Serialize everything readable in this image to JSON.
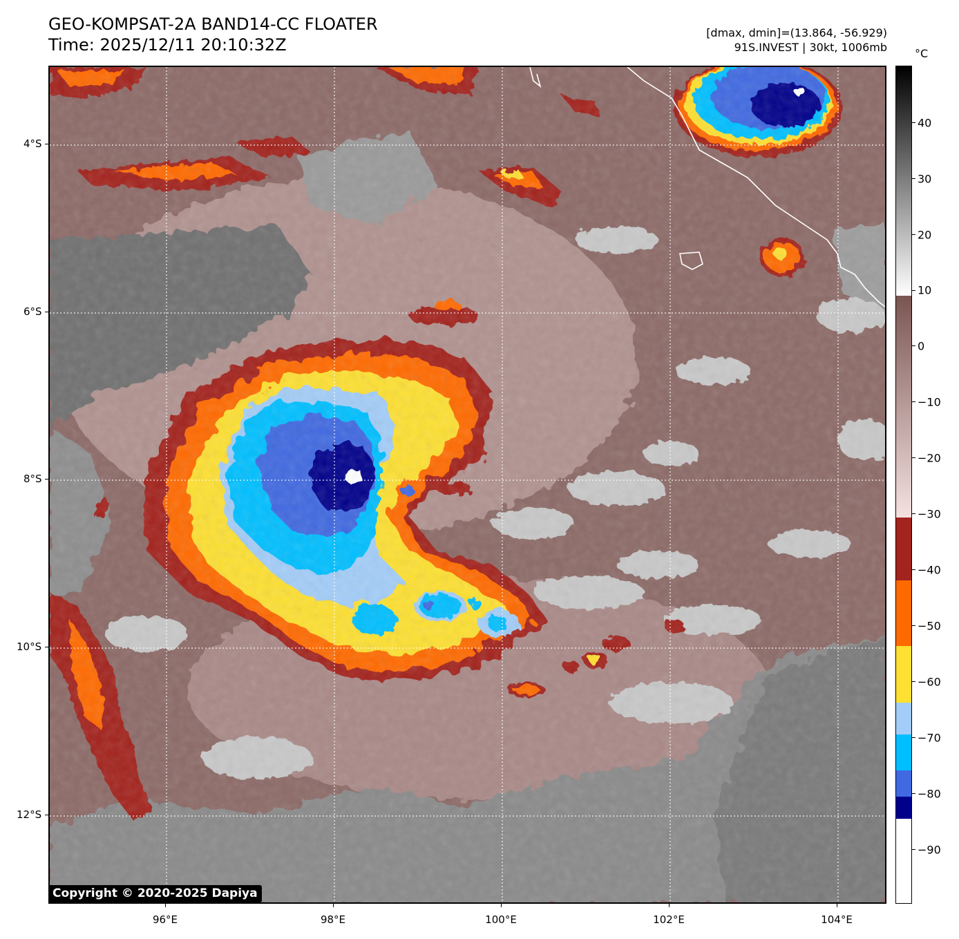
{
  "header": {
    "title_line1": "GEO-KOMPSAT-2A BAND14-CC FLOATER",
    "title_line2": "Time: 2025/12/11 20:10:32Z",
    "info_line1": "[dmax, dmin]=(13.864, -56.929)",
    "info_line2": "91S.INVEST | 30kt, 1006mb"
  },
  "map": {
    "lon_ticks": [
      "96°E",
      "98°E",
      "100°E",
      "102°E",
      "104°E"
    ],
    "lat_ticks": [
      "4°S",
      "6°S",
      "8°S",
      "10°S",
      "12°S"
    ],
    "grid": true,
    "colors": {
      "background_cloudtop": "#8c6a67",
      "warm_surface": "#7d7d7d",
      "coastline": "#ffffff"
    }
  },
  "copyright": "Copyright © 2020-2025 Dapiya",
  "colorbar": {
    "unit": "°C",
    "labels": [
      "40",
      "30",
      "20",
      "10",
      "0",
      "−10",
      "−20",
      "−30",
      "−40",
      "−50",
      "−60",
      "−70",
      "−80",
      "−90"
    ],
    "range": [
      -100,
      50
    ],
    "colors": {
      "minus_30_to_minus_40": "#a3231f",
      "minus_40_to_minus_50": "#ff6a00",
      "minus_50_to_minus_60": "#fde032",
      "minus_60_to_minus_65": "#a3cdf8",
      "minus_65_to_minus_75": "#00bfff",
      "minus_75_to_minus_80": "#4169e1",
      "minus_80_to_minus_84": "#00008b",
      "below_minus_84": "#ffffff"
    }
  }
}
